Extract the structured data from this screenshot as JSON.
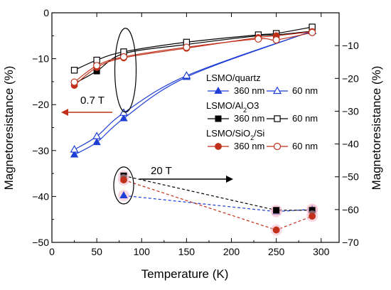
{
  "chart_data": {
    "type": "line",
    "xlabel": "Temperature (K)",
    "ylabel_left": "Magnetoresistance (%)",
    "ylabel_right": "Magnetoresistance (%)",
    "xlim": [
      0,
      320
    ],
    "ylim_left": [
      -50,
      0
    ],
    "ylim_right": [
      -70,
      0
    ],
    "x_ticks": [
      0,
      50,
      100,
      150,
      200,
      250,
      300
    ],
    "y_ticks_left": [
      0,
      -10,
      -20,
      -30,
      -40,
      -50
    ],
    "y_ticks_right": [
      -10,
      -20,
      -30,
      -40,
      -50,
      -60,
      -70
    ],
    "annotations": {
      "low_field": "0.7 T",
      "high_field": "20 T"
    },
    "legend": {
      "groups": [
        {
          "title": "LSMO/quartz",
          "items": [
            "360 nm",
            "60 nm"
          ]
        },
        {
          "title": "LSMO/Al2O3",
          "items": [
            "360 nm",
            "60 nm"
          ]
        },
        {
          "title": "LSMO/SiO2/Si",
          "items": [
            "360 nm",
            "60 nm"
          ]
        }
      ]
    },
    "colors": {
      "quartz": "#1f3fd6",
      "al2o3": "#000000",
      "sio2": "#c0301a"
    },
    "series": [
      {
        "name": "LSMO/quartz 360 nm",
        "field": "0.7 T",
        "axis": "left",
        "marker": "triangle",
        "filled": true,
        "color": "#1f3fd6",
        "x": [
          25,
          50,
          80,
          150,
          290
        ],
        "y": [
          -30.9,
          -28.2,
          -23.0,
          -14.0,
          -4.0
        ]
      },
      {
        "name": "LSMO/quartz 60 nm",
        "field": "0.7 T",
        "axis": "left",
        "marker": "triangle",
        "filled": false,
        "color": "#1f3fd6",
        "x": [
          25,
          50,
          80,
          150,
          290
        ],
        "y": [
          -29.8,
          -26.9,
          -21.8,
          -13.7,
          -4.0
        ]
      },
      {
        "name": "LSMO/Al2O3 360 nm",
        "field": "0.7 T",
        "axis": "left",
        "marker": "square",
        "filled": true,
        "color": "#000000",
        "x": [
          25,
          50,
          80,
          150,
          230,
          250,
          290
        ],
        "y": [
          -15.4,
          -12.7,
          -8.9,
          -6.9,
          -5.0,
          -4.8,
          -4.0
        ]
      },
      {
        "name": "LSMO/Al2O3 60 nm",
        "field": "0.7 T",
        "axis": "left",
        "marker": "square",
        "filled": false,
        "color": "#000000",
        "x": [
          25,
          50,
          80,
          150,
          230,
          250,
          290
        ],
        "y": [
          -12.5,
          -10.3,
          -8.5,
          -6.4,
          -4.8,
          -4.5,
          -3.1
        ]
      },
      {
        "name": "LSMO/SiO2/Si 360 nm",
        "field": "0.7 T",
        "axis": "left",
        "marker": "circle",
        "filled": true,
        "color": "#c0301a",
        "x": [
          25,
          50,
          80,
          150,
          230,
          250,
          290
        ],
        "y": [
          -15.8,
          -11.9,
          -9.8,
          -7.7,
          -5.4,
          -5.0,
          -4.1
        ]
      },
      {
        "name": "LSMO/SiO2/Si 60 nm",
        "field": "0.7 T",
        "axis": "left",
        "marker": "circle",
        "filled": false,
        "color": "#c0301a",
        "x": [
          25,
          50,
          80,
          150,
          230,
          250,
          290
        ],
        "y": [
          -15.1,
          -11.5,
          -9.6,
          -7.5,
          -5.7,
          -5.9,
          -4.3
        ]
      },
      {
        "name": "LSMO/quartz 360 nm",
        "field": "20 T",
        "axis": "left",
        "marker": "triangle",
        "filled": true,
        "color": "#1f3fd6",
        "x": [
          80,
          250,
          290
        ],
        "y": [
          -39.8,
          -43.3,
          -42.8
        ]
      },
      {
        "name": "LSMO/Al2O3 360 nm",
        "field": "20 T",
        "axis": "left",
        "marker": "square",
        "filled": true,
        "color": "#000000",
        "x": [
          80,
          250,
          290
        ],
        "y": [
          -35.5,
          -43.0,
          -43.0
        ]
      },
      {
        "name": "LSMO/SiO2/Si 360 nm",
        "field": "20 T",
        "axis": "left",
        "marker": "circle",
        "filled": true,
        "color": "#c0301a",
        "x": [
          80,
          250,
          290
        ],
        "y": [
          -36.4,
          -47.3,
          -44.3
        ]
      }
    ]
  }
}
